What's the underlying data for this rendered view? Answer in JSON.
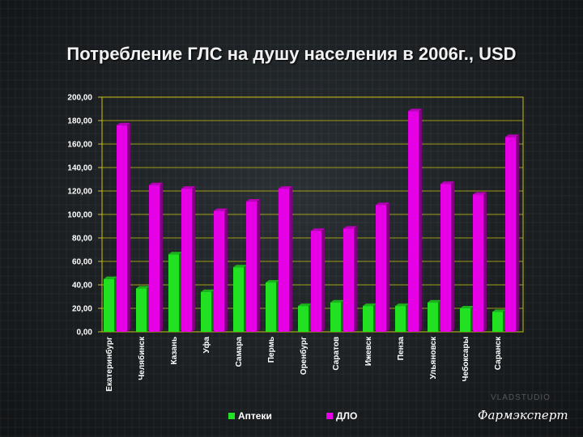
{
  "slide": {
    "title": "Потребление ГЛС на душу населения в 2006г., USD",
    "watermark": "VLADSTUDIO",
    "brand": "Фармэксперт"
  },
  "chart_data": {
    "type": "bar",
    "categories": [
      "Екатеринбург",
      "Челябинск",
      "Казань",
      "Уфа",
      "Самара",
      "Пермь",
      "Оренбург",
      "Саратов",
      "Ижевск",
      "Пенза",
      "Ульяновск",
      "Чебоксары",
      "Саранск"
    ],
    "series": [
      {
        "name": "Аптеки",
        "color": "#22e022",
        "values": [
          45,
          37,
          66,
          34,
          55,
          42,
          22,
          25,
          22,
          22,
          25,
          20,
          17
        ]
      },
      {
        "name": "ДЛО",
        "color": "#e600e6",
        "values": [
          176,
          125,
          122,
          103,
          111,
          122,
          86,
          88,
          108,
          188,
          126,
          117,
          166
        ]
      }
    ],
    "yticks": [
      "0,00",
      "20,00",
      "40,00",
      "60,00",
      "80,00",
      "100,00",
      "120,00",
      "140,00",
      "160,00",
      "180,00",
      "200,00"
    ],
    "ylim": [
      0,
      200
    ],
    "grid": true,
    "legend": "bottom"
  }
}
